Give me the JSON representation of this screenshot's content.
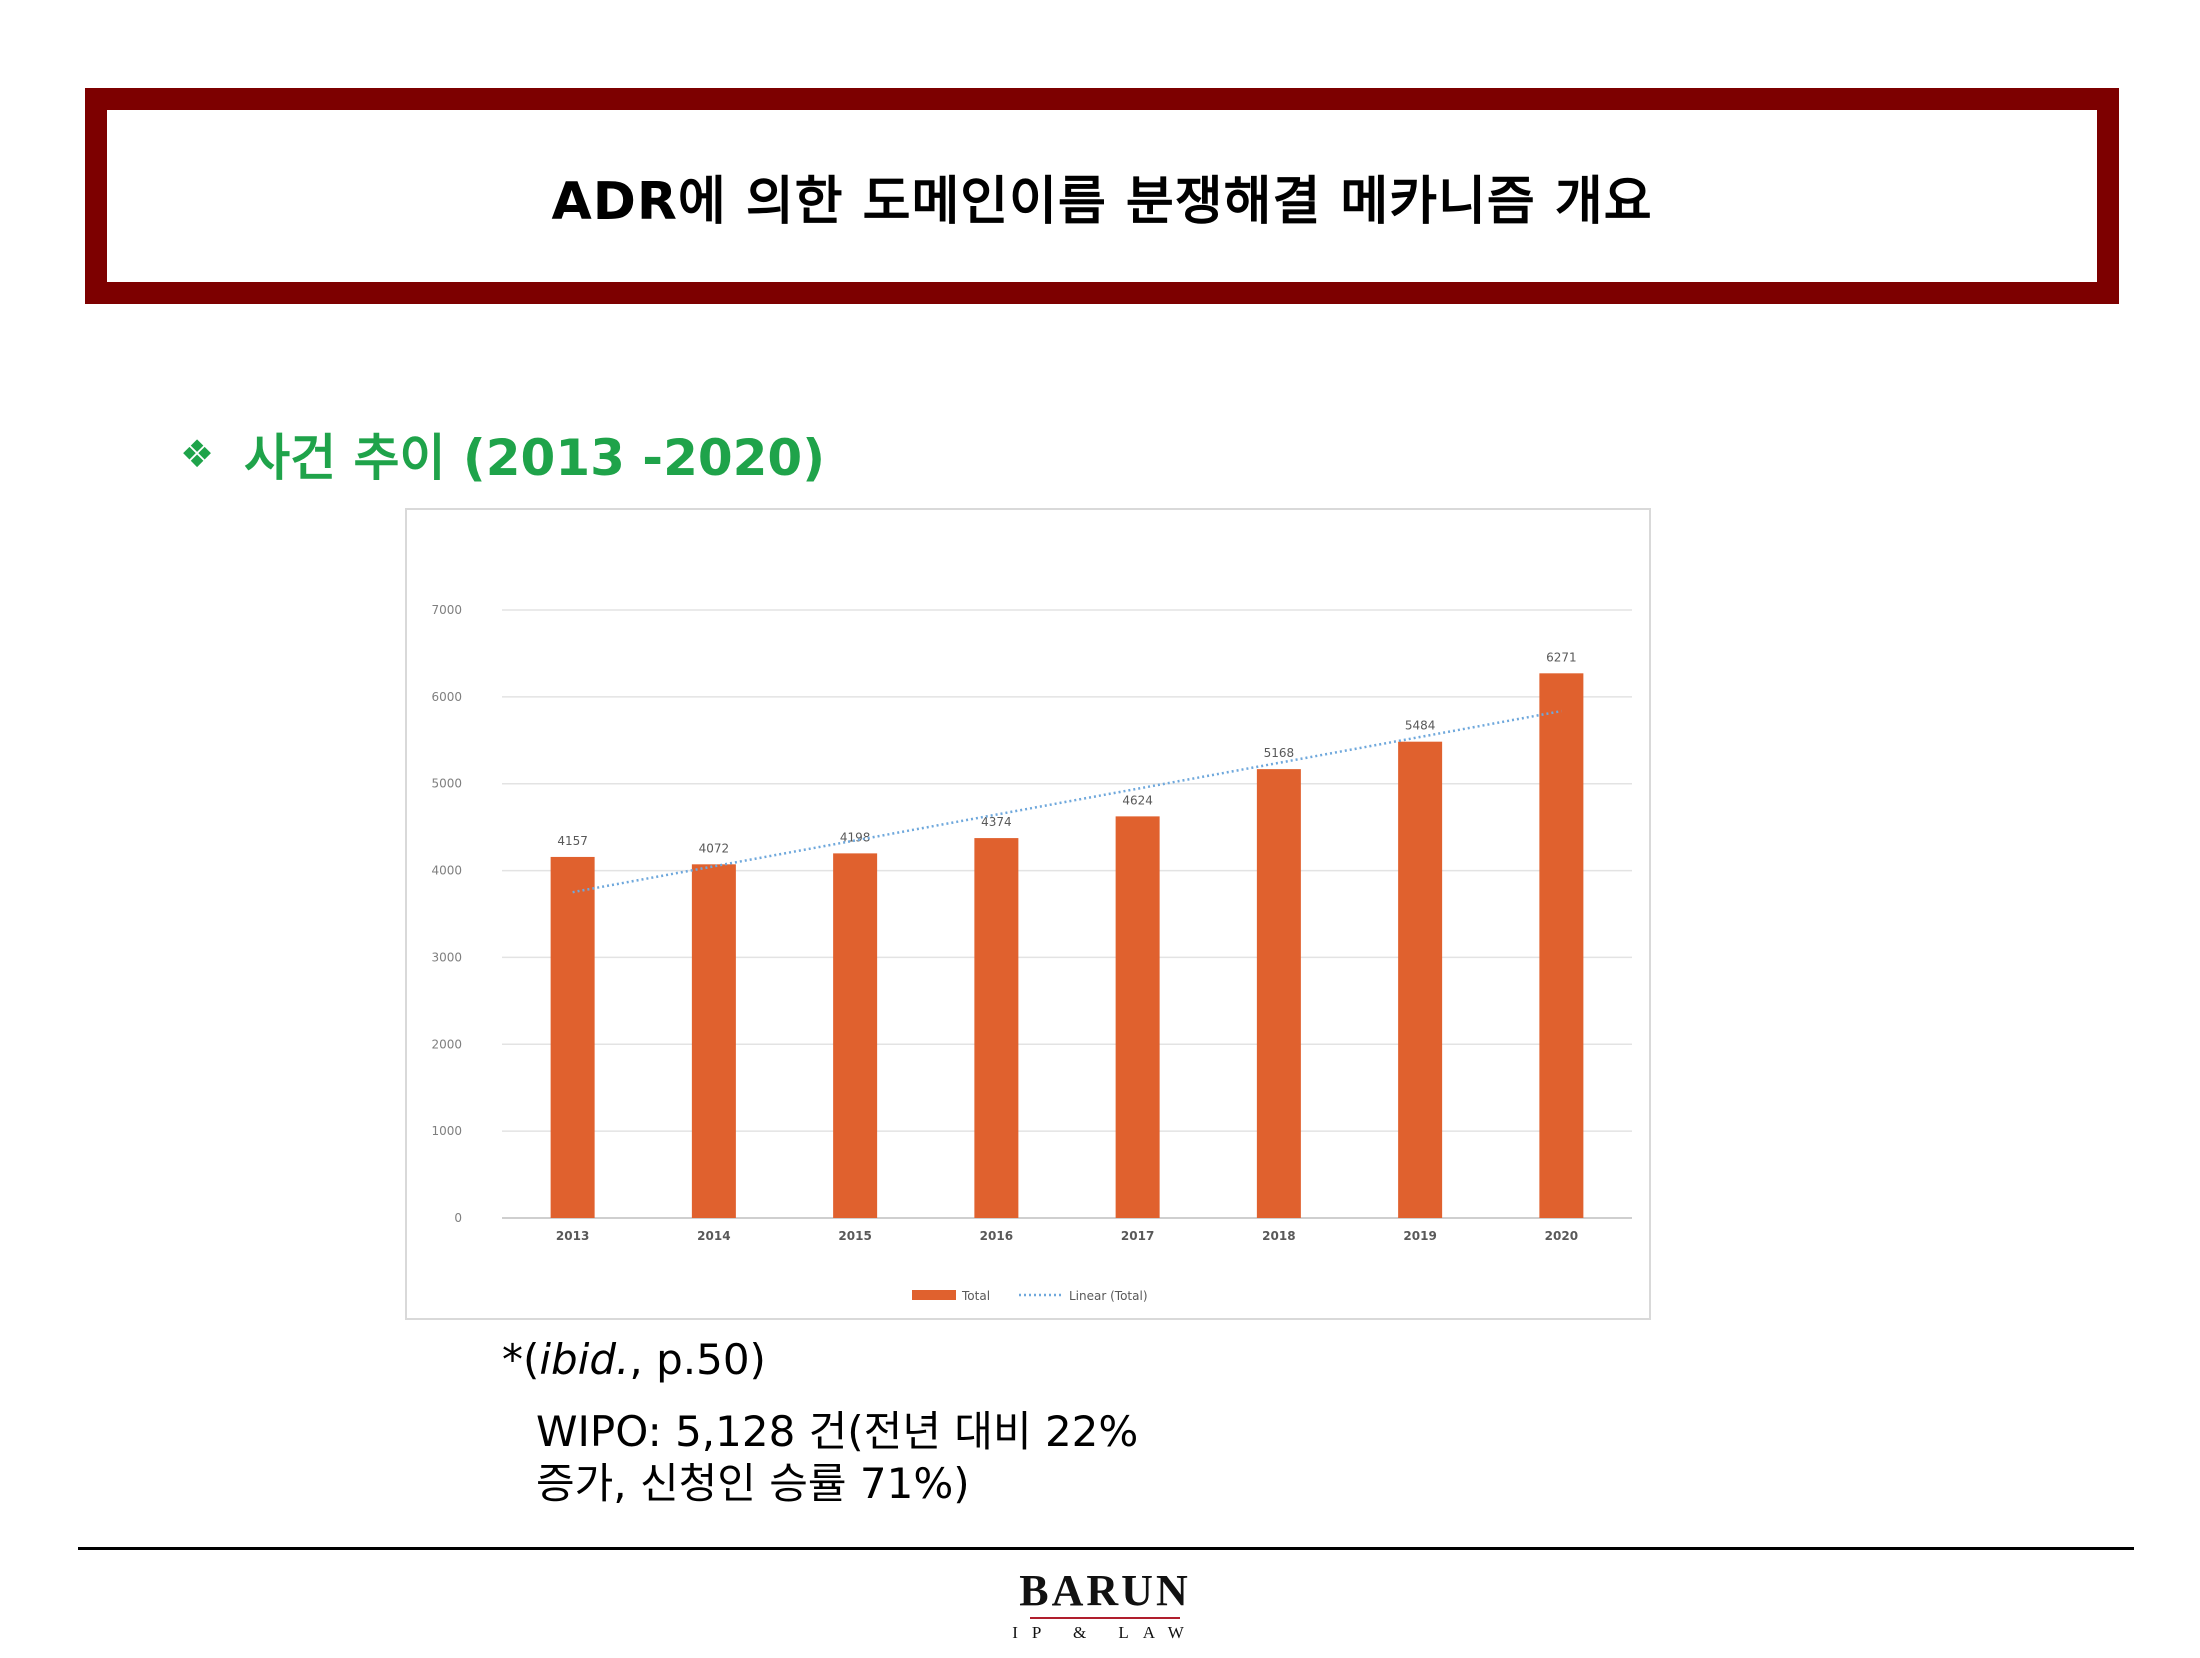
{
  "header": {
    "title": "ADR에 의한 도메인이름 분쟁해결 메카니즘 개요"
  },
  "section": {
    "bullet": "❖",
    "heading": "사건 추이 (2013 -2020)"
  },
  "chart_data": {
    "type": "bar",
    "categories": [
      "2013",
      "2014",
      "2015",
      "2016",
      "2017",
      "2018",
      "2019",
      "2020"
    ],
    "series": [
      {
        "name": "Total",
        "values": [
          4157,
          4072,
          4198,
          4374,
          4624,
          5168,
          5484,
          6271
        ],
        "color": "#e0612e"
      }
    ],
    "trendline": {
      "name": "Linear (Total)",
      "type": "linear",
      "color": "#6fa8dc"
    },
    "data_labels": [
      "4157",
      "4072",
      "4198",
      "4374",
      "4624",
      "5168",
      "5484",
      "6271"
    ],
    "y_ticks": [
      "0",
      "1000",
      "2000",
      "3000",
      "4000",
      "5000",
      "6000",
      "7000"
    ],
    "ylim": [
      0,
      7000
    ],
    "grid": true,
    "legend_position": "bottom"
  },
  "source": {
    "prefix": "*(",
    "ibid": "ibid.",
    "suffix": ", p.50)"
  },
  "note": {
    "line1": "WIPO: 5,128 건(전년 대비 22%",
    "line2": "증가, 신청인 승률 71%)"
  },
  "logo": {
    "name": "BARUN",
    "sub": "IP & LAW"
  },
  "colors": {
    "title_border": "#7d0000",
    "heading": "#1fa34a",
    "bar": "#e0612e",
    "trend": "#6fa8dc"
  }
}
